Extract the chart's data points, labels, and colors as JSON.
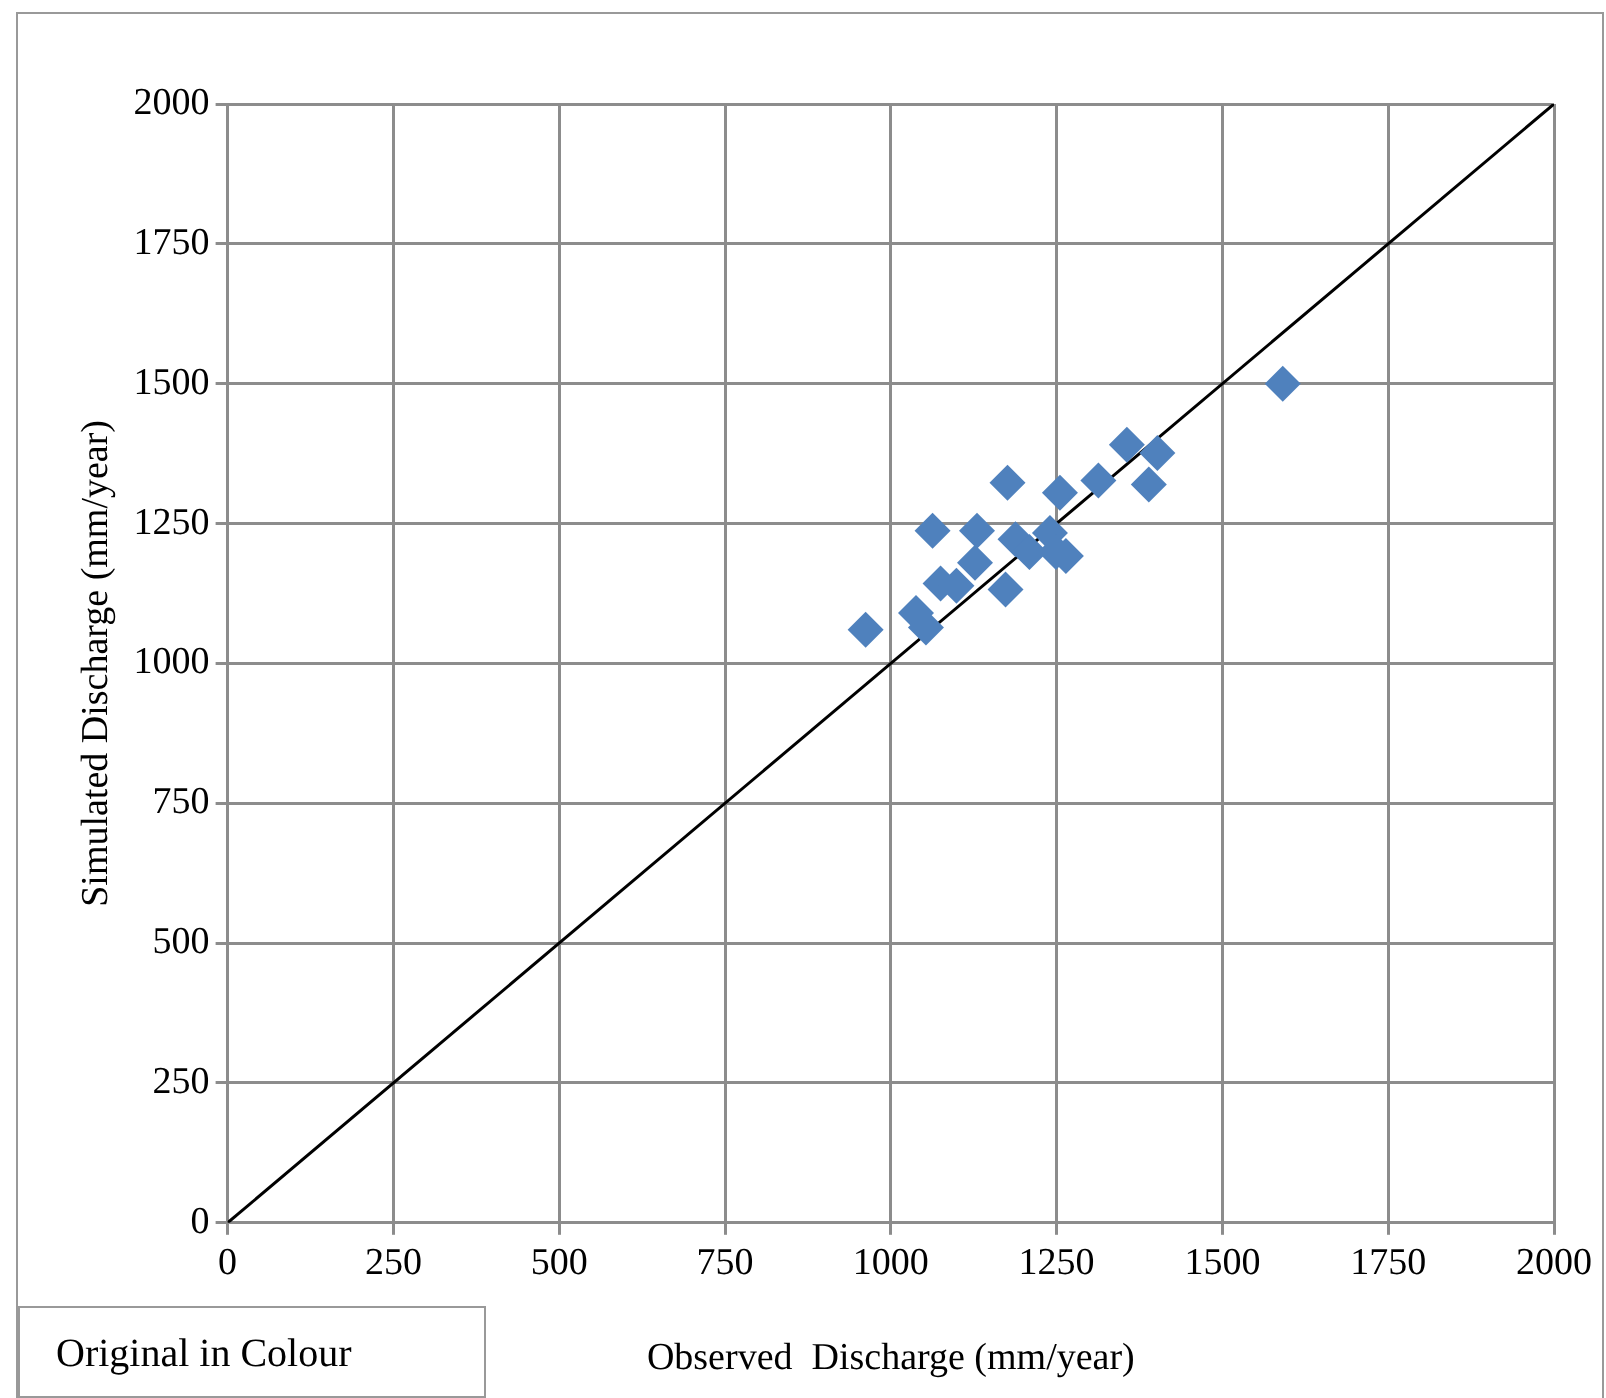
{
  "chart_data": {
    "type": "scatter",
    "xlabel": "Observed  Discharge (mm/year)",
    "ylabel": "Simulated Discharge (mm/year)",
    "xlim": [
      0,
      2000
    ],
    "ylim": [
      0,
      2000
    ],
    "xticks": [
      0,
      250,
      500,
      750,
      1000,
      1250,
      1500,
      1750,
      2000
    ],
    "yticks": [
      0,
      250,
      500,
      750,
      1000,
      1250,
      1500,
      1750,
      2000
    ],
    "grid": true,
    "legend": false,
    "marker": "diamond",
    "annotations": [
      "Original in Colour"
    ],
    "series": [
      {
        "type": "scatter",
        "color": "#4f81bd",
        "x": [
          962,
          1038,
          1053,
          1063,
          1075,
          1099,
          1130,
          1127,
          1173,
          1176,
          1188,
          1209,
          1240,
          1255,
          1264,
          1249,
          1313,
          1356,
          1389,
          1402,
          1591
        ],
        "values": [
          1060,
          1090,
          1064,
          1237,
          1143,
          1139,
          1237,
          1180,
          1132,
          1323,
          1222,
          1199,
          1233,
          1305,
          1192,
          1199,
          1327,
          1391,
          1320,
          1376,
          1500
        ]
      },
      {
        "type": "line",
        "color": "#000000",
        "x": [
          0,
          2000
        ],
        "values": [
          0,
          2000
        ],
        "marker": "none"
      }
    ]
  }
}
